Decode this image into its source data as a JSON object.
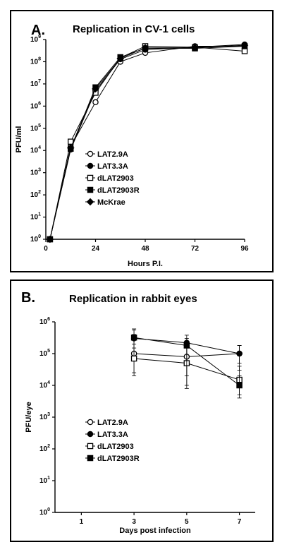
{
  "chart_data": [
    {
      "type": "line",
      "panel_label": "A.",
      "title": "Replication in CV-1 cells",
      "xlabel": "Hours P.I.",
      "ylabel": "PFU/ml",
      "xlim": [
        0,
        96
      ],
      "xticks": [
        0,
        24,
        48,
        72,
        96
      ],
      "y_scale": "log",
      "ylim": [
        1,
        1000000000
      ],
      "yticks": [
        {
          "base": "10",
          "exp": "0",
          "value": 1
        },
        {
          "base": "10",
          "exp": "1",
          "value": 10
        },
        {
          "base": "10",
          "exp": "2",
          "value": 100
        },
        {
          "base": "10",
          "exp": "3",
          "value": 1000
        },
        {
          "base": "10",
          "exp": "4",
          "value": 10000
        },
        {
          "base": "10",
          "exp": "5",
          "value": 100000
        },
        {
          "base": "10",
          "exp": "6",
          "value": 1000000
        },
        {
          "base": "10",
          "exp": "7",
          "value": 10000000
        },
        {
          "base": "10",
          "exp": "8",
          "value": 100000000
        },
        {
          "base": "10",
          "exp": "9",
          "value": 1000000000
        }
      ],
      "legend_position": "center-right",
      "series": [
        {
          "name": "LAT2.9A",
          "marker": "circle-open",
          "x": [
            2,
            12,
            24,
            36,
            48,
            72,
            96
          ],
          "y": [
            1,
            15000,
            1500000,
            100000000,
            250000000,
            500000000,
            500000000
          ]
        },
        {
          "name": "LAT3.3A",
          "marker": "circle-filled",
          "x": [
            2,
            12,
            24,
            36,
            48,
            72,
            96
          ],
          "y": [
            1,
            11000,
            5000000,
            130000000,
            350000000,
            450000000,
            600000000
          ]
        },
        {
          "name": "dLAT2903",
          "marker": "square-open",
          "x": [
            2,
            12,
            24,
            36,
            48,
            72,
            96
          ],
          "y": [
            1,
            25000,
            4000000,
            150000000,
            500000000,
            450000000,
            300000000
          ]
        },
        {
          "name": "dLAT2903R",
          "marker": "square-filled",
          "x": [
            2,
            12,
            24,
            36,
            48,
            72,
            96
          ],
          "y": [
            1,
            12000,
            7000000,
            160000000,
            400000000,
            400000000,
            500000000
          ]
        },
        {
          "name": "McKrae",
          "marker": "diamond-filled",
          "x": [
            2,
            12,
            24,
            36,
            48,
            72,
            96
          ],
          "y": [
            1,
            13000,
            6000000,
            140000000,
            420000000,
            430000000,
            550000000
          ]
        }
      ]
    },
    {
      "type": "line",
      "panel_label": "B.",
      "title": "Replication in rabbit eyes",
      "xlabel": "Days post infection",
      "ylabel": "PFU/eye",
      "xlim": [
        0,
        7.6
      ],
      "xticks": [
        1,
        3,
        5,
        7
      ],
      "y_scale": "log",
      "ylim": [
        1,
        1000000
      ],
      "yticks": [
        {
          "base": "10",
          "exp": "0",
          "value": 1
        },
        {
          "base": "10",
          "exp": "1",
          "value": 10
        },
        {
          "base": "10",
          "exp": "2",
          "value": 100
        },
        {
          "base": "10",
          "exp": "3",
          "value": 1000
        },
        {
          "base": "10",
          "exp": "4",
          "value": 10000
        },
        {
          "base": "10",
          "exp": "5",
          "value": 100000
        },
        {
          "base": "10",
          "exp": "6",
          "value": 1000000
        }
      ],
      "legend_position": "lower-left",
      "series": [
        {
          "name": "LAT2.9A",
          "marker": "circle-open",
          "x": [
            3,
            5,
            7
          ],
          "y": [
            100000,
            80000,
            100000
          ],
          "err_low": [
            25000,
            20000,
            30000
          ],
          "err_high": [
            400000,
            200000,
            180000
          ]
        },
        {
          "name": "LAT3.3A",
          "marker": "circle-filled",
          "x": [
            3,
            5,
            7
          ],
          "y": [
            300000,
            220000,
            100000
          ],
          "err_low": [
            80000,
            60000,
            50000
          ],
          "err_high": [
            550000,
            380000,
            180000
          ]
        },
        {
          "name": "dLAT2903",
          "marker": "square-open",
          "x": [
            3,
            5,
            7
          ],
          "y": [
            70000,
            50000,
            15000
          ],
          "err_low": [
            20000,
            8000,
            5000
          ],
          "err_high": [
            200000,
            200000,
            40000
          ]
        },
        {
          "name": "dLAT2903R",
          "marker": "square-filled",
          "x": [
            3,
            5,
            7
          ],
          "y": [
            320000,
            180000,
            10000
          ],
          "err_low": [
            150000,
            10000,
            4000
          ],
          "err_high": [
            600000,
            300000,
            20000
          ]
        }
      ]
    }
  ]
}
